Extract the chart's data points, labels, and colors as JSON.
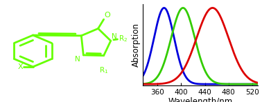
{
  "xlabel": "Wavelength/nm",
  "ylabel": "Absorption",
  "xlim": [
    335,
    530
  ],
  "ylim": [
    -0.02,
    1.05
  ],
  "xticks": [
    360,
    400,
    440,
    480,
    520
  ],
  "curves": [
    {
      "color": "#0000dd",
      "peak": 371,
      "sigma": 17
    },
    {
      "color": "#33cc00",
      "peak": 403,
      "sigma": 20
    },
    {
      "color": "#dd0000",
      "peak": 453,
      "sigma": 27
    }
  ],
  "linewidth": 2.0,
  "xlabel_fontsize": 8.5,
  "ylabel_fontsize": 8.5,
  "tick_fontsize": 7.5,
  "background_color": "#ffffff",
  "mol_color": "#66ff00"
}
